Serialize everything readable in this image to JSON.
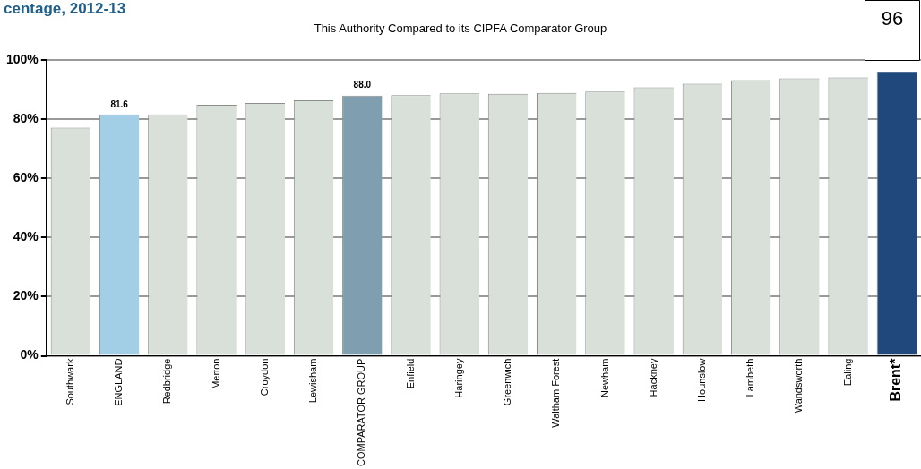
{
  "chart_data": {
    "type": "bar",
    "title": "centage, 2012-13",
    "subtitle": "This Authority Compared to its CIPFA Comparator Group",
    "categories": [
      "Southwark",
      "ENGLAND",
      "Redbridge",
      "Merton",
      "Croydon",
      "Lewisham",
      "COMPARATOR GROUP",
      "Enfield",
      "Haringey",
      "Greenwich",
      "Waltham Forest",
      "Newham",
      "Hackney",
      "Hounslow",
      "Lambeth",
      "Wandsworth",
      "Ealing",
      "Brent*"
    ],
    "values": [
      77.2,
      81.6,
      81.6,
      84.9,
      85.5,
      86.4,
      88.0,
      88.1,
      88.7,
      88.6,
      88.9,
      89.3,
      90.8,
      92.0,
      93.2,
      93.8,
      94.1,
      96
    ],
    "colors": [
      "#d9e0da",
      "#a2cfe6",
      "#d9e0da",
      "#d9e0da",
      "#d9e0da",
      "#d9e0da",
      "#7f9fb0",
      "#d9e0da",
      "#d9e0da",
      "#d9e0da",
      "#d9e0da",
      "#d9e0da",
      "#d9e0da",
      "#d9e0da",
      "#d9e0da",
      "#d9e0da",
      "#d9e0da",
      "#1f497d"
    ],
    "value_labels": [
      null,
      "81.6",
      null,
      null,
      null,
      null,
      "88.0",
      null,
      null,
      null,
      null,
      null,
      null,
      null,
      null,
      null,
      null,
      "96"
    ],
    "ylim": [
      0,
      100
    ],
    "yticks": [
      {
        "value": 0,
        "label": "0%"
      },
      {
        "value": 20,
        "label": "20%"
      },
      {
        "value": 40,
        "label": "40%"
      },
      {
        "value": 60,
        "label": "60%"
      },
      {
        "value": 80,
        "label": "80%"
      },
      {
        "value": 100,
        "label": "100%"
      }
    ],
    "grid": "y",
    "legend": false
  }
}
